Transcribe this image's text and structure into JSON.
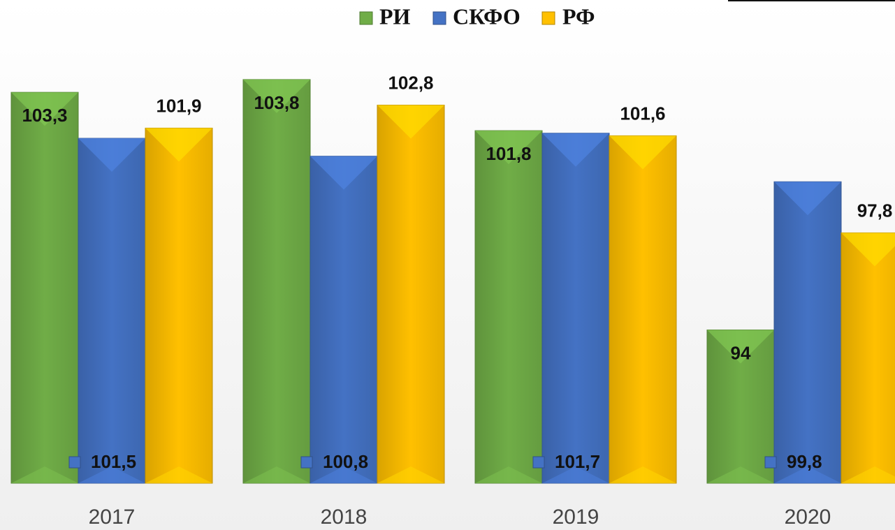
{
  "chart_data": {
    "type": "bar",
    "categories": [
      "2017",
      "2018",
      "2019",
      "2020"
    ],
    "series": [
      {
        "name": "РИ",
        "color": "#70ad47",
        "values": [
          103.3,
          103.8,
          101.8,
          94
        ],
        "value_labels": [
          "103,3",
          "103,8",
          "101,8",
          "94"
        ]
      },
      {
        "name": "СКФО",
        "color": "#4472c4",
        "values": [
          101.5,
          100.8,
          101.7,
          99.8
        ],
        "value_labels": [
          "101,5",
          "100,8",
          "101,7",
          "99,8"
        ]
      },
      {
        "name": "РФ",
        "color": "#ffc000",
        "values": [
          101.9,
          102.8,
          101.6,
          97.8
        ],
        "value_labels": [
          "101,9",
          "102,8",
          "101,6",
          "97,8"
        ]
      }
    ],
    "ylim": [
      88,
      105
    ],
    "legend": "top"
  }
}
